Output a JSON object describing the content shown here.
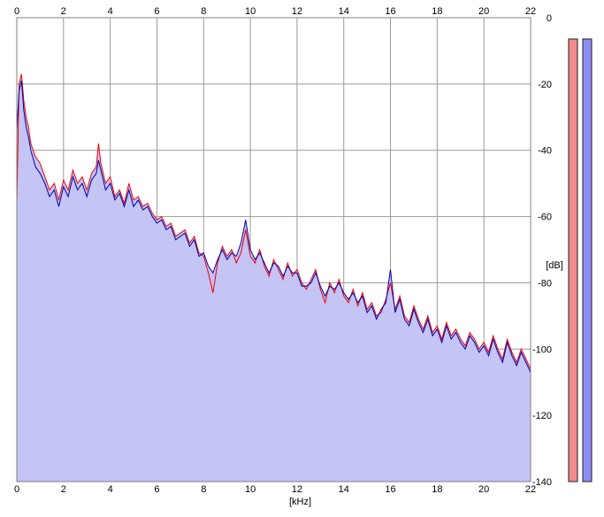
{
  "chart_data": {
    "type": "line",
    "title": "",
    "xlabel": "[kHz]",
    "ylabel": "[dB]",
    "xlim": [
      0,
      22
    ],
    "ylim": [
      -140,
      0
    ],
    "x_ticks": [
      0,
      2,
      4,
      6,
      8,
      10,
      12,
      14,
      16,
      18,
      20,
      22
    ],
    "y_ticks": [
      0,
      -20,
      -40,
      -60,
      -80,
      -100,
      -120,
      -140
    ],
    "x_tick_labels": [
      "0",
      "2",
      "4",
      "6",
      "8",
      "10",
      "12",
      "14",
      "16",
      "18",
      "20",
      "22"
    ],
    "y_tick_labels": [
      "0",
      "-20",
      "-40",
      "-60",
      "-80",
      "-100",
      "-120",
      "-140"
    ],
    "grid": true,
    "fill_color": "#c4c4f5",
    "series": [
      {
        "color": "#ee0000",
        "x": [
          0,
          0.1,
          0.2,
          0.3,
          0.4,
          0.5,
          0.6,
          0.8,
          1.0,
          1.2,
          1.4,
          1.6,
          1.8,
          2.0,
          2.2,
          2.4,
          2.6,
          2.8,
          3.0,
          3.2,
          3.4,
          3.5,
          3.6,
          3.8,
          4.0,
          4.2,
          4.4,
          4.6,
          4.8,
          5.0,
          5.2,
          5.4,
          5.6,
          5.8,
          6.0,
          6.2,
          6.4,
          6.6,
          6.8,
          7.0,
          7.2,
          7.4,
          7.6,
          7.8,
          8.0,
          8.2,
          8.4,
          8.6,
          8.8,
          9.0,
          9.2,
          9.4,
          9.6,
          9.8,
          10.0,
          10.2,
          10.4,
          10.6,
          10.8,
          11.0,
          11.2,
          11.4,
          11.6,
          11.8,
          12.0,
          12.2,
          12.4,
          12.6,
          12.8,
          13.0,
          13.2,
          13.4,
          13.6,
          13.8,
          14.0,
          14.2,
          14.4,
          14.6,
          14.8,
          15.0,
          15.2,
          15.4,
          15.6,
          15.8,
          16.0,
          16.2,
          16.4,
          16.6,
          16.8,
          17.0,
          17.2,
          17.4,
          17.6,
          17.8,
          18.0,
          18.2,
          18.4,
          18.6,
          18.8,
          19.0,
          19.2,
          19.4,
          19.6,
          19.8,
          20.0,
          20.2,
          20.4,
          20.6,
          20.8,
          21.0,
          21.2,
          21.4,
          21.6,
          21.8,
          22.0
        ],
        "values": [
          -56,
          -20,
          -17,
          -25,
          -30,
          -33,
          -38,
          -42,
          -44,
          -48,
          -52,
          -50,
          -55,
          -49,
          -52,
          -46,
          -50,
          -48,
          -52,
          -47,
          -45,
          -38,
          -44,
          -50,
          -48,
          -54,
          -52,
          -56,
          -50,
          -55,
          -54,
          -57,
          -56,
          -59,
          -61,
          -60,
          -63,
          -62,
          -66,
          -65,
          -64,
          -68,
          -66,
          -71,
          -72,
          -77,
          -83,
          -74,
          -69,
          -72,
          -70,
          -74,
          -71,
          -64,
          -72,
          -74,
          -70,
          -75,
          -78,
          -73,
          -76,
          -79,
          -74,
          -78,
          -76,
          -80,
          -82,
          -79,
          -76,
          -82,
          -86,
          -80,
          -83,
          -79,
          -84,
          -86,
          -82,
          -87,
          -83,
          -88,
          -86,
          -90,
          -89,
          -85,
          -80,
          -88,
          -84,
          -90,
          -92,
          -87,
          -91,
          -94,
          -90,
          -95,
          -93,
          -97,
          -92,
          -96,
          -94,
          -97,
          -99,
          -95,
          -97,
          -100,
          -98,
          -101,
          -96,
          -100,
          -103,
          -97,
          -101,
          -104,
          -100,
          -103,
          -106
        ]
      },
      {
        "color": "#0000aa",
        "x": [
          0,
          0.1,
          0.2,
          0.3,
          0.4,
          0.5,
          0.6,
          0.8,
          1.0,
          1.2,
          1.4,
          1.6,
          1.8,
          2.0,
          2.2,
          2.4,
          2.6,
          2.8,
          3.0,
          3.2,
          3.4,
          3.5,
          3.6,
          3.8,
          4.0,
          4.2,
          4.4,
          4.6,
          4.8,
          5.0,
          5.2,
          5.4,
          5.6,
          5.8,
          6.0,
          6.2,
          6.4,
          6.6,
          6.8,
          7.0,
          7.2,
          7.4,
          7.6,
          7.8,
          8.0,
          8.2,
          8.4,
          8.6,
          8.8,
          9.0,
          9.2,
          9.4,
          9.6,
          9.8,
          10.0,
          10.2,
          10.4,
          10.6,
          10.8,
          11.0,
          11.2,
          11.4,
          11.6,
          11.8,
          12.0,
          12.2,
          12.4,
          12.6,
          12.8,
          13.0,
          13.2,
          13.4,
          13.6,
          13.8,
          14.0,
          14.2,
          14.4,
          14.6,
          14.8,
          15.0,
          15.2,
          15.4,
          15.6,
          15.8,
          16.0,
          16.2,
          16.4,
          16.6,
          16.8,
          17.0,
          17.2,
          17.4,
          17.6,
          17.8,
          18.0,
          18.2,
          18.4,
          18.6,
          18.8,
          19.0,
          19.2,
          19.4,
          19.6,
          19.8,
          20.0,
          20.2,
          20.4,
          20.6,
          20.8,
          21.0,
          21.2,
          21.4,
          21.6,
          21.8,
          22.0
        ],
        "values": [
          -34,
          -22,
          -19,
          -28,
          -33,
          -36,
          -40,
          -45,
          -47,
          -50,
          -54,
          -52,
          -57,
          -51,
          -54,
          -48,
          -52,
          -50,
          -54,
          -49,
          -47,
          -43,
          -46,
          -52,
          -50,
          -55,
          -53,
          -57,
          -52,
          -57,
          -55,
          -58,
          -57,
          -60,
          -62,
          -61,
          -64,
          -63,
          -67,
          -66,
          -65,
          -69,
          -67,
          -72,
          -71,
          -75,
          -77,
          -73,
          -70,
          -73,
          -71,
          -72,
          -68,
          -61,
          -70,
          -73,
          -71,
          -74,
          -77,
          -74,
          -75,
          -78,
          -75,
          -77,
          -77,
          -81,
          -81,
          -80,
          -77,
          -81,
          -84,
          -81,
          -82,
          -80,
          -83,
          -85,
          -83,
          -86,
          -84,
          -89,
          -87,
          -91,
          -88,
          -86,
          -76,
          -89,
          -85,
          -91,
          -93,
          -88,
          -92,
          -95,
          -91,
          -96,
          -94,
          -98,
          -93,
          -97,
          -95,
          -98,
          -100,
          -96,
          -98,
          -101,
          -99,
          -102,
          -97,
          -101,
          -104,
          -98,
          -102,
          -105,
          -101,
          -104,
          -107
        ]
      }
    ],
    "level_meters": [
      {
        "color": "#f28c8c"
      },
      {
        "color": "#8c8cf2"
      }
    ]
  }
}
